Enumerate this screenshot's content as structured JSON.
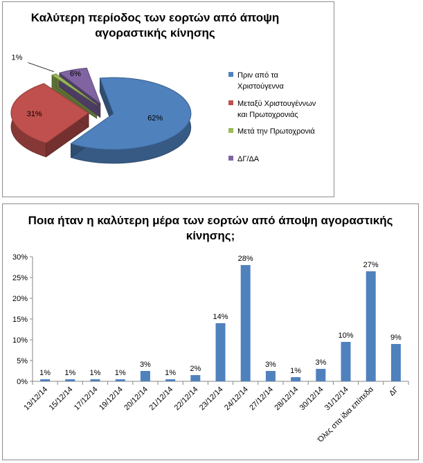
{
  "chart_data": [
    {
      "type": "pie",
      "title": "Καλύτερη περίοδος των εορτών από άποψη αγοραστικής κίνησης",
      "slices": [
        {
          "label": "Πριν από τα Χριστούγεννα",
          "legend_lines": [
            "Πριν από τα",
            "Χριστούγεννα"
          ],
          "value": 62,
          "value_label": "62%",
          "color": "#4f81bd"
        },
        {
          "label": "Μεταξύ Χριστουγέννων και Πρωτοχρονιάς",
          "legend_lines": [
            "Μεταξύ Χριστουγέννων",
            "και Πρωτοχρονιάς"
          ],
          "value": 31,
          "value_label": "31%",
          "color": "#c0504d"
        },
        {
          "label": "Μετά την Πρωτοχρονιά",
          "legend_lines": [
            "Μετά την Πρωτοχρονιά"
          ],
          "value": 1,
          "value_label": "1%",
          "color": "#9bbb59"
        },
        {
          "label": "ΔΓ/ΔΑ",
          "legend_lines": [
            "ΔΓ/ΔΑ"
          ],
          "value": 6,
          "value_label": "6%",
          "color": "#8064a2"
        }
      ],
      "style": "3d-exploded",
      "legend_position": "right"
    },
    {
      "type": "bar",
      "title": "Ποια ήταν η καλύτερη μέρα των εορτών από άποψη αγοραστικής κίνησης;",
      "categories": [
        "13/12/14",
        "15/12/14",
        "17/12/14",
        "19/12/14",
        "20/12/14",
        "21/12/14",
        "22/12/14",
        "23/12/14",
        "24/12/14",
        "27/12/14",
        "28/12/14",
        "30/12/14",
        "31/12/14",
        "Όλες στα ίδια επίπεδα",
        "ΔΓ"
      ],
      "values": [
        0.5,
        0.5,
        0.5,
        0.5,
        2.5,
        0.5,
        1.5,
        14,
        28,
        2.5,
        1,
        3,
        9.5,
        26.5,
        9
      ],
      "value_labels": [
        "1%",
        "1%",
        "1%",
        "1%",
        "3%",
        "1%",
        "2%",
        "14%",
        "28%",
        "3%",
        "1%",
        "3%",
        "10%",
        "27%",
        "9%"
      ],
      "yticks": [
        "0%",
        "5%",
        "10%",
        "15%",
        "20%",
        "25%",
        "30%"
      ],
      "ylim": [
        0,
        30
      ],
      "bar_color": "#4f81bd",
      "xlabel": "",
      "ylabel": "",
      "grid": false
    }
  ]
}
